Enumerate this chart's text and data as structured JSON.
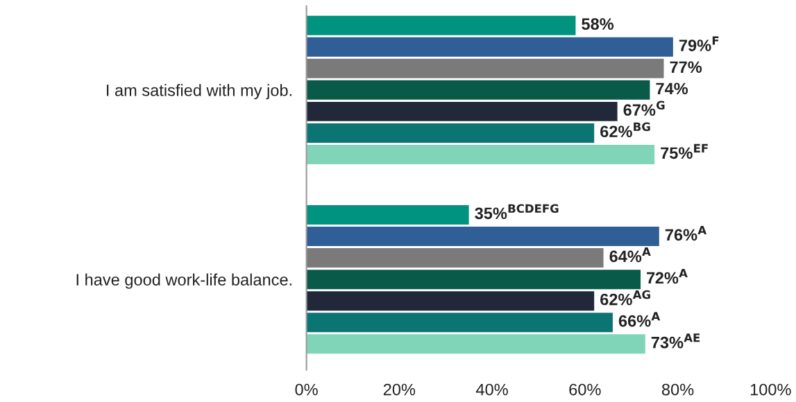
{
  "chart_data": {
    "type": "bar",
    "orientation": "horizontal",
    "categories": [
      "I am satisfied with my job.",
      "I have good work-life balance."
    ],
    "series": [
      {
        "color": "#009480",
        "values": [
          58,
          35
        ],
        "value_labels": [
          "58%",
          "35%$^{BCDEFG}$"
        ]
      },
      {
        "color": "#2f5f96",
        "values": [
          79,
          76
        ],
        "value_labels": [
          "79%$^{F}$",
          "76%$^{A}$"
        ]
      },
      {
        "color": "#7a7a7a",
        "values": [
          77,
          64
        ],
        "value_labels": [
          "77%",
          "64%$^{A}$"
        ]
      },
      {
        "color": "#0a5a4a",
        "values": [
          74,
          72
        ],
        "value_labels": [
          "74%",
          "72%$^{A}$"
        ]
      },
      {
        "color": "#20283a",
        "values": [
          67,
          62
        ],
        "value_labels": [
          "67%$^{G}$",
          "62%$^{AG}$"
        ]
      },
      {
        "color": "#0b7574",
        "values": [
          62,
          66
        ],
        "value_labels": [
          "62%$^{BG}$",
          "66%$^{A}$"
        ]
      },
      {
        "color": "#80d4b8",
        "values": [
          75,
          73
        ],
        "value_labels": [
          "75%$^{EF}$",
          "73%$^{AE}$"
        ]
      }
    ],
    "xlim": [
      0,
      100
    ],
    "xticks": [
      {
        "value": 0,
        "label": "0%"
      },
      {
        "value": 20,
        "label": "20%"
      },
      {
        "value": 40,
        "label": "40%"
      },
      {
        "value": 60,
        "label": "60%"
      },
      {
        "value": 80,
        "label": "80%"
      },
      {
        "value": 100,
        "label": "100%"
      }
    ],
    "grid": false,
    "legend": false
  }
}
